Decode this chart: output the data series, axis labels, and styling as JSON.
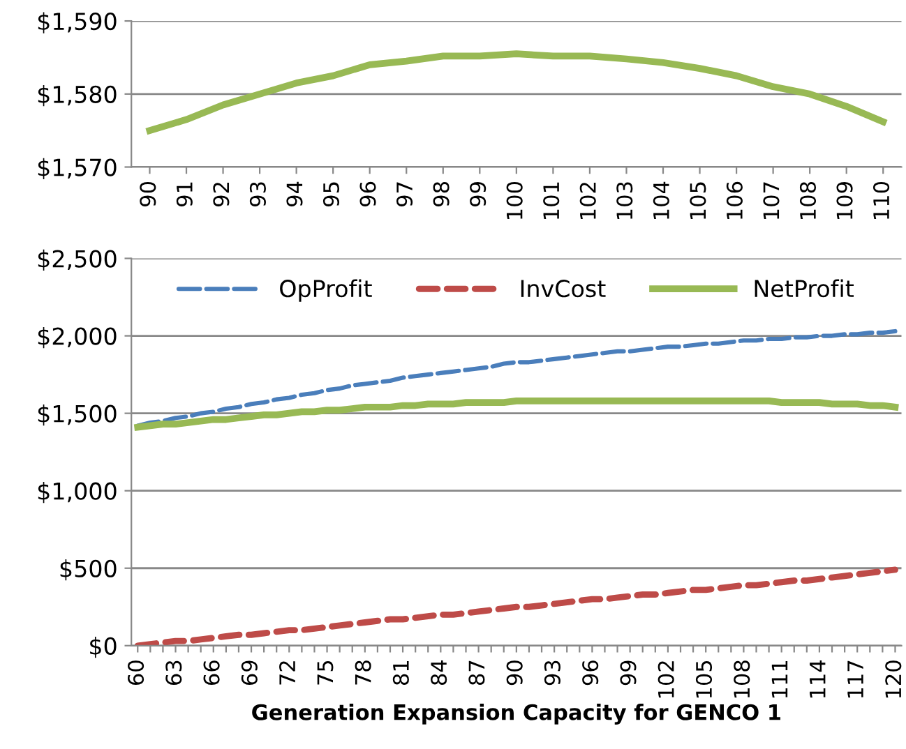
{
  "chart_data": [
    {
      "type": "line",
      "categories": [
        "90",
        "91",
        "92",
        "93",
        "94",
        "95",
        "96",
        "97",
        "98",
        "99",
        "100",
        "101",
        "102",
        "103",
        "104",
        "105",
        "106",
        "107",
        "108",
        "109",
        "110"
      ],
      "series": [
        {
          "color": "#98b954",
          "line_style": "solid",
          "values": [
            1575,
            1576.5,
            1578.5,
            1580,
            1581.5,
            1582.5,
            1584,
            1584.5,
            1585.2,
            1585.2,
            1585.5,
            1585.2,
            1585.2,
            1584.8,
            1584.3,
            1583.5,
            1582.5,
            1581,
            1580,
            1578.3,
            1576.2
          ]
        }
      ],
      "ylim": [
        1570,
        1590
      ],
      "yticks": [
        {
          "value": 1570,
          "label": "$1,570"
        },
        {
          "value": 1580,
          "label": "$1,580"
        },
        {
          "value": 1590,
          "label": "$1,590"
        }
      ],
      "grid": "y",
      "legend": false
    },
    {
      "type": "line",
      "xlabel": "Generation Expansion Capacity for GENCO 1",
      "categories": [
        "60",
        null,
        null,
        "63",
        null,
        null,
        "66",
        null,
        null,
        "69",
        null,
        null,
        "72",
        null,
        null,
        "75",
        null,
        null,
        "78",
        null,
        null,
        "81",
        null,
        null,
        "84",
        null,
        null,
        "87",
        null,
        null,
        "90",
        null,
        null,
        "93",
        null,
        null,
        "96",
        null,
        null,
        "99",
        null,
        null,
        "102",
        null,
        null,
        "105",
        null,
        null,
        "108",
        null,
        null,
        "111",
        null,
        null,
        "114",
        null,
        null,
        "117",
        null,
        null,
        "120"
      ],
      "series": [
        {
          "name": "OpProfit",
          "color": "#4a7ebb",
          "line_style": "dashed",
          "values": [
            1420,
            1440,
            1450,
            1470,
            1480,
            1500,
            1510,
            1530,
            1540,
            1560,
            1570,
            1590,
            1600,
            1620,
            1630,
            1650,
            1660,
            1680,
            1690,
            1700,
            1710,
            1730,
            1740,
            1750,
            1760,
            1770,
            1780,
            1790,
            1800,
            1820,
            1830,
            1830,
            1840,
            1850,
            1860,
            1870,
            1880,
            1890,
            1900,
            1900,
            1910,
            1920,
            1930,
            1930,
            1940,
            1950,
            1950,
            1960,
            1970,
            1970,
            1980,
            1980,
            1990,
            1990,
            2000,
            2000,
            2010,
            2010,
            2020,
            2020,
            2030
          ]
        },
        {
          "name": "InvCost",
          "color": "#be4b48",
          "line_style": "dashed",
          "values": [
            0,
            10,
            20,
            30,
            30,
            40,
            50,
            60,
            70,
            70,
            80,
            90,
            100,
            100,
            110,
            120,
            130,
            140,
            150,
            160,
            170,
            170,
            180,
            190,
            200,
            200,
            210,
            220,
            230,
            240,
            250,
            250,
            260,
            270,
            280,
            290,
            300,
            300,
            310,
            320,
            330,
            330,
            340,
            350,
            360,
            360,
            370,
            380,
            390,
            390,
            400,
            410,
            420,
            420,
            430,
            440,
            450,
            460,
            470,
            480,
            490
          ]
        },
        {
          "name": "NetProfit",
          "color": "#98b954",
          "line_style": "solid",
          "values": [
            1410,
            1420,
            1430,
            1430,
            1440,
            1450,
            1460,
            1460,
            1470,
            1480,
            1490,
            1490,
            1500,
            1510,
            1510,
            1520,
            1520,
            1530,
            1540,
            1540,
            1540,
            1550,
            1550,
            1560,
            1560,
            1560,
            1570,
            1570,
            1570,
            1570,
            1580,
            1580,
            1580,
            1580,
            1580,
            1580,
            1580,
            1580,
            1580,
            1580,
            1580,
            1580,
            1580,
            1580,
            1580,
            1580,
            1580,
            1580,
            1580,
            1580,
            1580,
            1570,
            1570,
            1570,
            1570,
            1560,
            1560,
            1560,
            1550,
            1550,
            1540
          ]
        }
      ],
      "ylim": [
        0,
        2500
      ],
      "yticks": [
        {
          "value": 0,
          "label": "$0"
        },
        {
          "value": 500,
          "label": "$500"
        },
        {
          "value": 1000,
          "label": "$1,000"
        },
        {
          "value": 1500,
          "label": "$1,500"
        },
        {
          "value": 2000,
          "label": "$2,000"
        },
        {
          "value": 2500,
          "label": "$2,500"
        }
      ],
      "grid": "y",
      "legend": "top"
    }
  ]
}
